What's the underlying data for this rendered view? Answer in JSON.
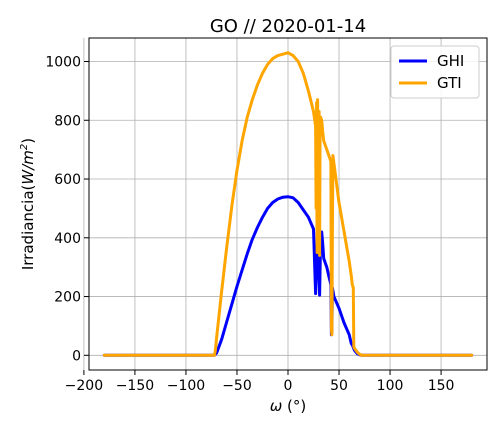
{
  "chart_data": {
    "type": "line",
    "title": "GO // 2020-01-14",
    "xlabel": "ω (°)",
    "ylabel": "Irradiancia(W/m²)",
    "xlim": [
      -195,
      195
    ],
    "ylim": [
      -50,
      1080
    ],
    "x_ticks": [
      -200,
      -150,
      -100,
      -50,
      0,
      50,
      100,
      150
    ],
    "x_tick_labels": [
      "−200",
      "−150",
      "−100",
      "−50",
      "0",
      "50",
      "100",
      "150"
    ],
    "y_ticks": [
      0,
      200,
      400,
      600,
      800,
      1000
    ],
    "y_tick_labels": [
      "0",
      "200",
      "400",
      "600",
      "800",
      "1000"
    ],
    "grid": true,
    "legend_position": "top-right",
    "series": [
      {
        "name": "GHI",
        "color": "#0000ff",
        "x": [
          -180,
          -72,
          -70,
          -65,
          -60,
          -55,
          -50,
          -45,
          -40,
          -35,
          -30,
          -25,
          -20,
          -15,
          -10,
          -5,
          0,
          5,
          10,
          15,
          20,
          25,
          27,
          28,
          29,
          30,
          31,
          32,
          33,
          34,
          35,
          38,
          40,
          42,
          42.5,
          43,
          43.5,
          45,
          50,
          55,
          60,
          62,
          63,
          65,
          68,
          70,
          72,
          180
        ],
        "y": [
          0,
          0,
          8,
          55,
          115,
          175,
          235,
          290,
          345,
          395,
          435,
          470,
          500,
          520,
          532,
          538,
          540,
          536,
          520,
          495,
          470,
          430,
          210,
          360,
          380,
          290,
          205,
          410,
          420,
          380,
          330,
          300,
          270,
          240,
          70,
          80,
          230,
          200,
          160,
          110,
          70,
          40,
          35,
          18,
          5,
          2,
          0,
          0
        ]
      },
      {
        "name": "GTI",
        "color": "#ffa500",
        "x": [
          -180,
          -72,
          -71,
          -70,
          -65,
          -60,
          -55,
          -50,
          -45,
          -40,
          -35,
          -30,
          -25,
          -20,
          -15,
          -10,
          -5,
          0,
          5,
          10,
          15,
          20,
          25,
          27,
          27.5,
          28,
          28.5,
          29,
          29.5,
          30,
          30.5,
          31,
          31.5,
          32,
          33,
          34,
          35,
          38,
          42,
          42.5,
          43,
          43.5,
          44,
          50,
          55,
          60,
          62,
          63,
          64,
          64.5,
          65,
          68,
          70,
          72,
          180
        ],
        "y": [
          0,
          0,
          20,
          60,
          220,
          370,
          510,
          630,
          730,
          810,
          870,
          920,
          960,
          990,
          1010,
          1020,
          1025,
          1030,
          1020,
          1000,
          960,
          900,
          830,
          780,
          500,
          860,
          350,
          870,
          420,
          580,
          830,
          340,
          780,
          810,
          800,
          760,
          730,
          700,
          660,
          90,
          70,
          430,
          680,
          520,
          420,
          320,
          270,
          240,
          230,
          30,
          25,
          10,
          4,
          0,
          0
        ]
      }
    ]
  }
}
